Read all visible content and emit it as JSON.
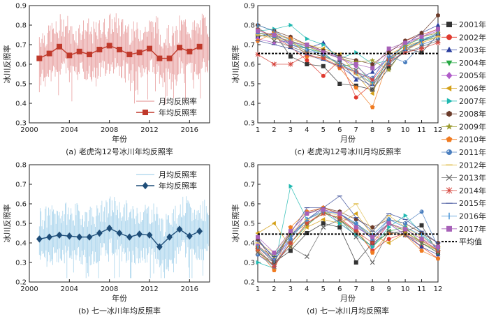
{
  "chart_data": [
    {
      "id": "a",
      "type": "line",
      "caption": "(a) 老虎沟12号冰川年均反照率",
      "xlabel": "年份",
      "ylabel": "冰川反照率",
      "xlim": [
        2000,
        2018
      ],
      "ylim": [
        0.3,
        0.9
      ],
      "xticks": [
        2000,
        2004,
        2008,
        2012,
        2016
      ],
      "yticks": [
        0.3,
        0.4,
        0.5,
        0.6,
        0.7,
        0.8,
        0.9
      ],
      "legend_position": "bottom-right",
      "legend": [
        "月均反照率",
        "年均反照率"
      ],
      "monthly_color": "#e8a0a0",
      "annual_color": "#c0392b",
      "annual": {
        "name": "年均反照率",
        "x": [
          2001,
          2002,
          2003,
          2004,
          2005,
          2006,
          2007,
          2008,
          2009,
          2010,
          2011,
          2012,
          2013,
          2014,
          2015,
          2016,
          2017
        ],
        "y": [
          0.63,
          0.655,
          0.69,
          0.645,
          0.665,
          0.65,
          0.675,
          0.695,
          0.675,
          0.65,
          0.66,
          0.68,
          0.63,
          0.63,
          0.685,
          0.665,
          0.69
        ]
      }
    },
    {
      "id": "b",
      "type": "line",
      "caption": "(b) 七一冰川年均反照率",
      "xlabel": "年份",
      "ylabel": "冰川反照率",
      "xlim": [
        2000,
        2018
      ],
      "ylim": [
        0.2,
        0.8
      ],
      "xticks": [
        2000,
        2004,
        2008,
        2012,
        2016
      ],
      "yticks": [
        0.2,
        0.3,
        0.4,
        0.5,
        0.6,
        0.7,
        0.8
      ],
      "legend_position": "top-right",
      "legend": [
        "月均反照率",
        "年均反照率"
      ],
      "monthly_color": "#a9d4ec",
      "annual_color": "#1f4e79",
      "annual": {
        "name": "年均反照率",
        "x": [
          2001,
          2002,
          2003,
          2004,
          2005,
          2006,
          2007,
          2008,
          2009,
          2010,
          2011,
          2012,
          2013,
          2014,
          2015,
          2016,
          2017
        ],
        "y": [
          0.42,
          0.43,
          0.44,
          0.435,
          0.43,
          0.43,
          0.45,
          0.475,
          0.45,
          0.43,
          0.445,
          0.44,
          0.38,
          0.43,
          0.47,
          0.435,
          0.46
        ]
      }
    },
    {
      "id": "c",
      "type": "line",
      "caption": "(c) 老虎沟12号冰川月均反照率",
      "xlabel": "月份",
      "ylabel": "冰川反照率",
      "xlim": [
        1,
        12
      ],
      "ylim": [
        0.3,
        0.9
      ],
      "xticks": [
        1,
        2,
        3,
        4,
        5,
        6,
        7,
        8,
        9,
        10,
        11,
        12
      ],
      "yticks": [
        0.3,
        0.4,
        0.5,
        0.6,
        0.7,
        0.8,
        0.9
      ],
      "mean_value": 0.655,
      "series": [
        {
          "name": "2001年",
          "values": [
            0.74,
            0.76,
            0.64,
            0.6,
            0.59,
            0.5,
            0.49,
            0.47,
            0.58,
            0.68,
            0.66,
            0.75
          ]
        },
        {
          "name": "2002年",
          "values": [
            0.78,
            0.74,
            0.69,
            0.62,
            0.54,
            0.62,
            0.43,
            0.5,
            0.6,
            0.72,
            0.75,
            0.78
          ]
        },
        {
          "name": "2003年",
          "values": [
            0.74,
            0.76,
            0.7,
            0.68,
            0.71,
            0.62,
            0.52,
            0.56,
            0.63,
            0.7,
            0.76,
            0.8
          ]
        },
        {
          "name": "2004年",
          "values": [
            0.76,
            0.75,
            0.71,
            0.68,
            0.66,
            0.59,
            0.6,
            0.5,
            0.62,
            0.68,
            0.72,
            0.74
          ]
        },
        {
          "name": "2005年",
          "values": [
            0.73,
            0.71,
            0.72,
            0.69,
            0.67,
            0.63,
            0.59,
            0.52,
            0.67,
            0.7,
            0.74,
            0.77
          ]
        },
        {
          "name": "2006年",
          "values": [
            0.76,
            0.75,
            0.73,
            0.7,
            0.68,
            0.65,
            0.55,
            0.45,
            0.65,
            0.69,
            0.72,
            0.76
          ]
        },
        {
          "name": "2007年",
          "values": [
            0.77,
            0.78,
            0.8,
            0.73,
            0.7,
            0.63,
            0.66,
            0.6,
            0.62,
            0.7,
            0.73,
            0.75
          ]
        },
        {
          "name": "2008年",
          "values": [
            0.8,
            0.77,
            0.74,
            0.7,
            0.67,
            0.64,
            0.62,
            0.6,
            0.66,
            0.72,
            0.76,
            0.85
          ]
        },
        {
          "name": "2009年",
          "values": [
            0.75,
            0.74,
            0.72,
            0.69,
            0.66,
            0.63,
            0.61,
            0.62,
            0.57,
            0.69,
            0.74,
            0.76
          ]
        },
        {
          "name": "2010年",
          "values": [
            0.72,
            0.76,
            0.73,
            0.64,
            0.63,
            0.58,
            0.48,
            0.38,
            0.63,
            0.68,
            0.71,
            0.74
          ]
        },
        {
          "name": "2011年",
          "values": [
            0.76,
            0.74,
            0.7,
            0.67,
            0.65,
            0.6,
            0.56,
            0.53,
            0.64,
            0.61,
            0.7,
            0.73
          ]
        },
        {
          "name": "2012年",
          "values": [
            0.75,
            0.73,
            0.72,
            0.66,
            0.64,
            0.6,
            0.55,
            0.5,
            0.6,
            0.67,
            0.71,
            0.74
          ]
        },
        {
          "name": "2013年",
          "values": [
            0.79,
            0.72,
            0.69,
            0.66,
            0.64,
            0.61,
            0.57,
            0.47,
            0.61,
            0.66,
            0.69,
            0.72
          ]
        },
        {
          "name": "2014年",
          "values": [
            0.65,
            0.6,
            0.6,
            0.65,
            0.63,
            0.59,
            0.56,
            0.52,
            0.62,
            0.66,
            0.68,
            0.71
          ]
        },
        {
          "name": "2015年",
          "values": [
            0.72,
            0.7,
            0.68,
            0.65,
            0.62,
            0.59,
            0.53,
            0.49,
            0.6,
            0.67,
            0.72,
            0.75
          ]
        },
        {
          "name": "2016年",
          "values": [
            0.8,
            0.77,
            0.72,
            0.68,
            0.65,
            0.6,
            0.56,
            0.5,
            0.62,
            0.68,
            0.72,
            0.76
          ]
        },
        {
          "name": "2017年",
          "values": [
            0.77,
            0.75,
            0.71,
            0.7,
            0.66,
            0.63,
            0.6,
            0.58,
            0.68,
            0.71,
            0.74,
            0.78
          ]
        }
      ]
    },
    {
      "id": "d",
      "type": "line",
      "caption": "(d) 七一冰川月均反照率",
      "xlabel": "月份",
      "ylabel": "冰川反照率",
      "xlim": [
        1,
        12
      ],
      "ylim": [
        0.2,
        0.8
      ],
      "xticks": [
        1,
        2,
        3,
        4,
        5,
        6,
        7,
        8,
        9,
        10,
        11,
        12
      ],
      "yticks": [
        0.2,
        0.3,
        0.4,
        0.5,
        0.6,
        0.7,
        0.8
      ],
      "mean_value": 0.445,
      "series": [
        {
          "name": "2001年",
          "values": [
            0.38,
            0.3,
            0.36,
            0.45,
            0.5,
            0.48,
            0.3,
            0.4,
            0.45,
            0.46,
            0.49,
            0.35
          ]
        },
        {
          "name": "2002年",
          "values": [
            0.34,
            0.29,
            0.4,
            0.5,
            0.56,
            0.52,
            0.46,
            0.36,
            0.42,
            0.45,
            0.38,
            0.32
          ]
        },
        {
          "name": "2003年",
          "values": [
            0.42,
            0.32,
            0.44,
            0.52,
            0.58,
            0.55,
            0.49,
            0.42,
            0.5,
            0.44,
            0.38,
            0.34
          ]
        },
        {
          "name": "2004年",
          "values": [
            0.36,
            0.28,
            0.4,
            0.49,
            0.56,
            0.52,
            0.45,
            0.38,
            0.46,
            0.48,
            0.4,
            0.35
          ]
        },
        {
          "name": "2005年",
          "values": [
            0.39,
            0.31,
            0.42,
            0.56,
            0.58,
            0.5,
            0.44,
            0.38,
            0.5,
            0.44,
            0.41,
            0.37
          ]
        },
        {
          "name": "2006年",
          "values": [
            0.45,
            0.5,
            0.38,
            0.48,
            0.52,
            0.5,
            0.55,
            0.44,
            0.4,
            0.45,
            0.41,
            0.36
          ]
        },
        {
          "name": "2007年",
          "values": [
            0.3,
            0.27,
            0.69,
            0.52,
            0.56,
            0.5,
            0.44,
            0.38,
            0.48,
            0.54,
            0.45,
            0.37
          ]
        },
        {
          "name": "2008年",
          "values": [
            0.42,
            0.3,
            0.46,
            0.55,
            0.58,
            0.56,
            0.52,
            0.48,
            0.52,
            0.5,
            0.45,
            0.4
          ]
        },
        {
          "name": "2009年",
          "values": [
            0.38,
            0.33,
            0.44,
            0.5,
            0.55,
            0.53,
            0.5,
            0.43,
            0.5,
            0.46,
            0.4,
            0.36
          ]
        },
        {
          "name": "2010年",
          "values": [
            0.36,
            0.26,
            0.48,
            0.56,
            0.58,
            0.55,
            0.48,
            0.35,
            0.45,
            0.44,
            0.36,
            0.32
          ]
        },
        {
          "name": "2011年",
          "values": [
            0.34,
            0.28,
            0.42,
            0.52,
            0.57,
            0.55,
            0.5,
            0.42,
            0.52,
            0.5,
            0.56,
            0.38
          ]
        },
        {
          "name": "2012年",
          "values": [
            0.4,
            0.35,
            0.45,
            0.52,
            0.56,
            0.54,
            0.6,
            0.46,
            0.54,
            0.48,
            0.43,
            0.38
          ]
        },
        {
          "name": "2013年",
          "values": [
            0.35,
            0.3,
            0.38,
            0.33,
            0.48,
            0.52,
            0.43,
            0.3,
            0.46,
            0.44,
            0.4,
            0.35
          ]
        },
        {
          "name": "2014年",
          "values": [
            0.37,
            0.28,
            0.4,
            0.5,
            0.55,
            0.53,
            0.46,
            0.4,
            0.5,
            0.47,
            0.42,
            0.36
          ]
        },
        {
          "name": "2015年",
          "values": [
            0.41,
            0.33,
            0.45,
            0.58,
            0.58,
            0.64,
            0.53,
            0.46,
            0.55,
            0.52,
            0.46,
            0.4
          ]
        },
        {
          "name": "2016年",
          "values": [
            0.38,
            0.31,
            0.43,
            0.52,
            0.56,
            0.55,
            0.5,
            0.44,
            0.52,
            0.48,
            0.44,
            0.37
          ]
        },
        {
          "name": "2017年",
          "values": [
            0.43,
            0.35,
            0.46,
            0.55,
            0.57,
            0.55,
            0.48,
            0.43,
            0.5,
            0.47,
            0.42,
            0.38
          ]
        }
      ]
    }
  ],
  "legend": {
    "items": [
      {
        "label": "2001年",
        "marker": "square",
        "color": "#333333"
      },
      {
        "label": "2002年",
        "marker": "circle",
        "color": "#e03a2f"
      },
      {
        "label": "2003年",
        "marker": "triangle-up",
        "color": "#2b3f9e"
      },
      {
        "label": "2004年",
        "marker": "triangle-down",
        "color": "#27a844"
      },
      {
        "label": "2005年",
        "marker": "diamond",
        "color": "#b05cc9"
      },
      {
        "label": "2006年",
        "marker": "triangle-left",
        "color": "#d4a017"
      },
      {
        "label": "2007年",
        "marker": "triangle-right",
        "color": "#1fb8b0"
      },
      {
        "label": "2008年",
        "marker": "hexagon",
        "color": "#6b3b2a"
      },
      {
        "label": "2009年",
        "marker": "star",
        "color": "#9a9a2c"
      },
      {
        "label": "2010年",
        "marker": "pentagon",
        "color": "#f07b21"
      },
      {
        "label": "2011年",
        "marker": "ball",
        "color": "#4b7fbf"
      },
      {
        "label": "2012年",
        "marker": "dash",
        "color": "#e2c25a"
      },
      {
        "label": "2013年",
        "marker": "x",
        "color": "#666666"
      },
      {
        "label": "2014年",
        "marker": "asterisk",
        "color": "#d6453d"
      },
      {
        "label": "2015年",
        "marker": "line",
        "color": "#3d4f9a"
      },
      {
        "label": "2016年",
        "marker": "vbar",
        "color": "#3e8fd4"
      },
      {
        "label": "2017年",
        "marker": "square",
        "color": "#a761b8"
      },
      {
        "label": "平均值",
        "marker": "dotted",
        "color": "#000000"
      }
    ]
  }
}
